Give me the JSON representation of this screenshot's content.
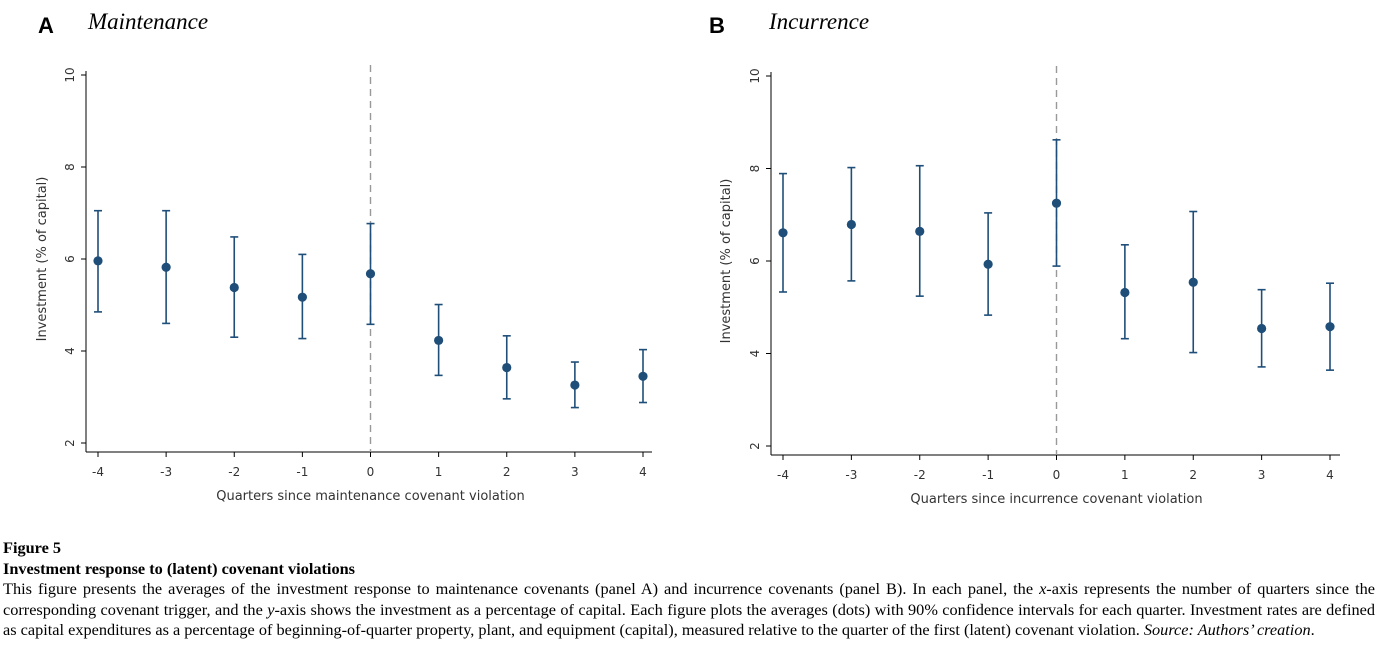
{
  "chart_data": [
    {
      "type": "scatter",
      "panel_letter": "A",
      "title": "Maintenance",
      "xlabel": "Quarters since maintenance covenant violation",
      "ylabel": "Investment (% of capital)",
      "x": [
        -4,
        -3,
        -2,
        -1,
        0,
        1,
        2,
        3,
        4
      ],
      "x_ticks": [
        "-4",
        "-3",
        "-2",
        "-1",
        "0",
        "1",
        "2",
        "3",
        "4"
      ],
      "y_ticks": [
        "2",
        "4",
        "6",
        "8",
        "10"
      ],
      "ylim": [
        2,
        10
      ],
      "vline_x": 0,
      "series": [
        {
          "values": [
            5.96,
            5.82,
            5.38,
            5.17,
            5.68,
            4.23,
            3.64,
            3.26,
            3.45
          ],
          "ci_low": [
            4.85,
            4.6,
            4.3,
            4.27,
            4.58,
            3.47,
            2.96,
            2.77,
            2.88
          ],
          "ci_high": [
            7.05,
            7.05,
            6.48,
            6.1,
            6.77,
            5.01,
            4.33,
            3.76,
            4.03
          ]
        }
      ],
      "colors": {
        "marker": "#1f4e79",
        "errorbar": "#1f4e79",
        "vline": "#999999"
      },
      "grid": false
    },
    {
      "type": "scatter",
      "panel_letter": "B",
      "title": "Incurrence",
      "xlabel": "Quarters since incurrence covenant violation",
      "ylabel": "Investment (% of capital)",
      "x": [
        -4,
        -3,
        -2,
        -1,
        0,
        1,
        2,
        3,
        4
      ],
      "x_ticks": [
        "-4",
        "-3",
        "-2",
        "-1",
        "0",
        "1",
        "2",
        "3",
        "4"
      ],
      "y_ticks": [
        "2",
        "4",
        "6",
        "8",
        "10"
      ],
      "ylim": [
        2,
        10
      ],
      "vline_x": 0,
      "series": [
        {
          "values": [
            6.61,
            6.79,
            6.64,
            5.93,
            7.25,
            5.32,
            5.54,
            4.54,
            4.58
          ],
          "ci_low": [
            5.33,
            5.57,
            5.24,
            4.83,
            5.89,
            4.32,
            4.02,
            3.71,
            3.64
          ],
          "ci_high": [
            7.89,
            8.02,
            8.06,
            7.04,
            8.62,
            6.35,
            7.07,
            5.38,
            5.52
          ]
        }
      ],
      "colors": {
        "marker": "#1f4e79",
        "errorbar": "#1f4e79",
        "vline": "#999999"
      },
      "grid": false
    }
  ],
  "caption": {
    "figure_number": "Figure 5",
    "figure_title": "Investment response to (latent) covenant violations",
    "body_parts": [
      "This figure presents the averages of the investment response to maintenance covenants (panel A) and incurrence covenants (panel B). In each panel, the ",
      "x",
      "-axis represents the number of quarters since the corresponding covenant trigger, and the ",
      "y",
      "-axis shows the investment as a percentage of capital. Each figure plots the averages (dots) with 90% confidence intervals for each quarter. Investment rates are defined as capital expenditures as a percentage of beginning-of-quarter property, plant, and equipment (capital), measured relative to the quarter of the first (latent) covenant violation. "
    ],
    "source": "Source: Authors’ creation",
    "source_end": "."
  }
}
